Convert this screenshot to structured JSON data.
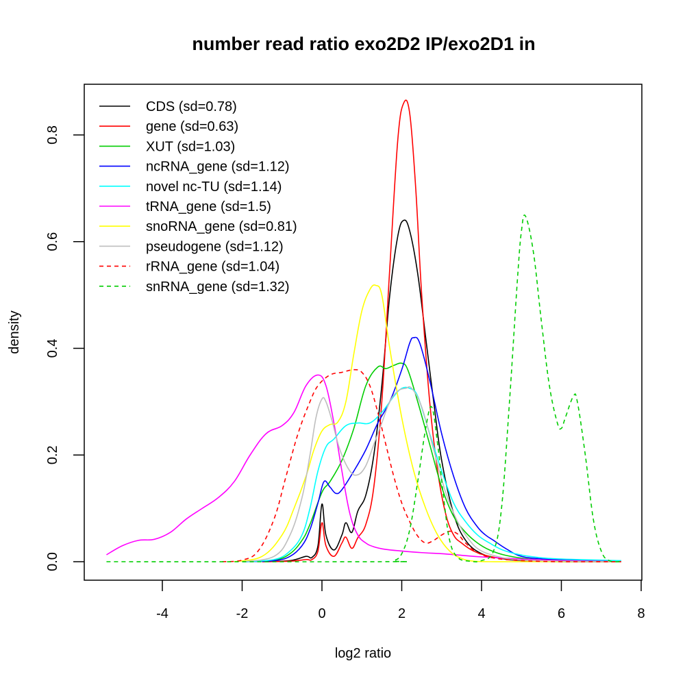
{
  "chart_data": {
    "type": "line",
    "title": "number read ratio exo2D2 IP/exo2D1 in",
    "xlabel": "log2 ratio",
    "ylabel": "density",
    "xlim": [
      -5.5,
      8.0
    ],
    "ylim": [
      -0.035,
      0.893
    ],
    "x_ticks": [
      -4,
      -2,
      0,
      2,
      4,
      6,
      8
    ],
    "x_tick_labels": [
      "-4",
      "-2",
      "0",
      "2",
      "4",
      "6",
      "8"
    ],
    "y_ticks": [
      0.0,
      0.2,
      0.4,
      0.6,
      0.8
    ],
    "y_tick_labels": [
      "0.0",
      "0.2",
      "0.4",
      "0.6",
      "0.8"
    ],
    "grid": false,
    "legend_position": "top-left",
    "series": [
      {
        "name": "CDS (sd=0.78)",
        "color": "#000000",
        "dash": "solid",
        "x": [
          -1.5,
          -0.8,
          -0.4,
          -0.25,
          -0.1,
          0.0,
          0.1,
          0.3,
          0.5,
          0.6,
          0.75,
          0.9,
          1.1,
          1.3,
          1.5,
          1.7,
          1.9,
          2.05,
          2.2,
          2.4,
          2.6,
          2.8,
          3.0,
          3.3,
          3.6,
          4.0,
          4.5,
          5.0,
          6.0,
          7.5
        ],
        "y": [
          0.0,
          0.002,
          0.01,
          0.008,
          0.03,
          0.108,
          0.05,
          0.022,
          0.05,
          0.073,
          0.055,
          0.095,
          0.125,
          0.2,
          0.33,
          0.5,
          0.61,
          0.64,
          0.62,
          0.54,
          0.42,
          0.3,
          0.19,
          0.09,
          0.04,
          0.015,
          0.006,
          0.002,
          0.0,
          0.0
        ]
      },
      {
        "name": "gene (sd=0.63)",
        "color": "#ff0000",
        "dash": "solid",
        "x": [
          -1.5,
          -0.8,
          -0.4,
          -0.25,
          -0.1,
          0.0,
          0.1,
          0.3,
          0.5,
          0.6,
          0.75,
          0.9,
          1.1,
          1.3,
          1.5,
          1.7,
          1.9,
          2.05,
          2.2,
          2.35,
          2.5,
          2.7,
          2.9,
          3.1,
          3.3,
          3.5,
          3.8,
          4.2,
          4.8,
          5.5,
          7.5
        ],
        "y": [
          0.0,
          0.001,
          0.004,
          0.004,
          0.02,
          0.073,
          0.03,
          0.01,
          0.035,
          0.046,
          0.025,
          0.045,
          0.07,
          0.14,
          0.3,
          0.55,
          0.79,
          0.86,
          0.84,
          0.7,
          0.5,
          0.3,
          0.17,
          0.09,
          0.05,
          0.035,
          0.02,
          0.01,
          0.004,
          0.001,
          0.0
        ]
      },
      {
        "name": "XUT (sd=1.03)",
        "color": "#00cd00",
        "dash": "solid",
        "x": [
          -2.0,
          -1.2,
          -0.8,
          -0.5,
          -0.3,
          0.0,
          0.2,
          0.5,
          0.8,
          1.1,
          1.4,
          1.6,
          1.8,
          2.0,
          2.15,
          2.4,
          2.7,
          3.0,
          3.3,
          3.6,
          3.9,
          4.2,
          4.6,
          5.2,
          6.0,
          7.5
        ],
        "y": [
          0.0,
          0.003,
          0.015,
          0.04,
          0.07,
          0.13,
          0.15,
          0.19,
          0.25,
          0.33,
          0.365,
          0.362,
          0.368,
          0.372,
          0.36,
          0.3,
          0.22,
          0.14,
          0.085,
          0.055,
          0.035,
          0.022,
          0.012,
          0.005,
          0.002,
          0.0
        ]
      },
      {
        "name": "ncRNA_gene (sd=1.12)",
        "color": "#0000ff",
        "dash": "solid",
        "x": [
          -2.0,
          -1.2,
          -0.8,
          -0.5,
          -0.3,
          -0.1,
          0.05,
          0.2,
          0.35,
          0.5,
          0.8,
          1.1,
          1.4,
          1.7,
          2.0,
          2.2,
          2.3,
          2.45,
          2.7,
          3.0,
          3.3,
          3.6,
          3.9,
          4.1,
          4.3,
          4.6,
          5.0,
          5.6,
          6.5,
          7.5
        ],
        "y": [
          0.0,
          0.002,
          0.01,
          0.03,
          0.06,
          0.11,
          0.15,
          0.14,
          0.128,
          0.135,
          0.17,
          0.21,
          0.26,
          0.3,
          0.36,
          0.41,
          0.42,
          0.41,
          0.34,
          0.24,
          0.16,
          0.1,
          0.065,
          0.05,
          0.04,
          0.025,
          0.01,
          0.005,
          0.002,
          0.001
        ]
      },
      {
        "name": "novel nc-TU (sd=1.14)",
        "color": "#00ffff",
        "dash": "solid",
        "x": [
          -2.0,
          -1.2,
          -0.8,
          -0.5,
          -0.3,
          -0.1,
          0.1,
          0.3,
          0.6,
          0.9,
          1.2,
          1.5,
          1.8,
          2.0,
          2.2,
          2.4,
          2.7,
          3.0,
          3.3,
          3.6,
          3.9,
          4.2,
          4.6,
          5.2,
          6.0,
          7.5
        ],
        "y": [
          0.0,
          0.004,
          0.02,
          0.05,
          0.1,
          0.17,
          0.215,
          0.23,
          0.255,
          0.26,
          0.26,
          0.28,
          0.31,
          0.325,
          0.325,
          0.31,
          0.24,
          0.17,
          0.11,
          0.075,
          0.05,
          0.035,
          0.02,
          0.01,
          0.005,
          0.002
        ]
      },
      {
        "name": "tRNA_gene (sd=1.5)",
        "color": "#ff00ff",
        "dash": "solid",
        "x": [
          -5.4,
          -5.0,
          -4.6,
          -4.2,
          -3.8,
          -3.4,
          -3.0,
          -2.6,
          -2.2,
          -1.8,
          -1.4,
          -1.0,
          -0.7,
          -0.4,
          -0.1,
          0.1,
          0.3,
          0.5,
          0.7,
          0.9,
          1.1,
          1.3,
          1.6,
          2.0,
          2.5,
          3.0,
          3.5,
          4.0,
          5.0,
          6.0,
          7.5
        ],
        "y": [
          0.013,
          0.03,
          0.04,
          0.042,
          0.055,
          0.08,
          0.1,
          0.12,
          0.15,
          0.2,
          0.24,
          0.255,
          0.28,
          0.33,
          0.35,
          0.33,
          0.26,
          0.17,
          0.09,
          0.05,
          0.035,
          0.028,
          0.023,
          0.02,
          0.017,
          0.015,
          0.012,
          0.009,
          0.005,
          0.002,
          0.0
        ]
      },
      {
        "name": "snoRNA_gene (sd=0.81)",
        "color": "#ffff00",
        "dash": "solid",
        "x": [
          -2.2,
          -1.5,
          -1.0,
          -0.7,
          -0.4,
          -0.2,
          0.0,
          0.2,
          0.4,
          0.6,
          0.8,
          1.0,
          1.2,
          1.35,
          1.5,
          1.7,
          2.0,
          2.3,
          2.6,
          2.9,
          3.2,
          3.5,
          3.8,
          4.2,
          5.0,
          7.5
        ],
        "y": [
          0.0,
          0.01,
          0.05,
          0.1,
          0.16,
          0.21,
          0.245,
          0.257,
          0.262,
          0.3,
          0.39,
          0.47,
          0.51,
          0.518,
          0.5,
          0.4,
          0.27,
          0.17,
          0.1,
          0.05,
          0.02,
          0.006,
          0.001,
          0.0,
          0.0,
          0.0
        ]
      },
      {
        "name": "pseudogene (sd=1.12)",
        "color": "#bebebe",
        "dash": "solid",
        "x": [
          -2.0,
          -1.2,
          -0.8,
          -0.5,
          -0.3,
          -0.15,
          0.0,
          0.1,
          0.25,
          0.45,
          0.7,
          0.9,
          1.1,
          1.3,
          1.5,
          1.7,
          1.9,
          2.1,
          2.25,
          2.5,
          2.8,
          3.1,
          3.4,
          3.7,
          4.0,
          4.5,
          5.0,
          6.0,
          7.5
        ],
        "y": [
          0.0,
          0.01,
          0.05,
          0.12,
          0.2,
          0.27,
          0.305,
          0.3,
          0.265,
          0.21,
          0.17,
          0.163,
          0.18,
          0.22,
          0.26,
          0.3,
          0.32,
          0.325,
          0.325,
          0.29,
          0.21,
          0.13,
          0.075,
          0.04,
          0.02,
          0.008,
          0.003,
          0.001,
          0.0
        ]
      },
      {
        "name": "rRNA_gene (sd=1.04)",
        "color": "#ff0000",
        "dash": "dashed",
        "x": [
          -2.5,
          -2.0,
          -1.6,
          -1.2,
          -0.9,
          -0.6,
          -0.3,
          -0.1,
          0.2,
          0.5,
          0.8,
          1.0,
          1.2,
          1.4,
          1.6,
          1.8,
          2.0,
          2.2,
          2.4,
          2.6,
          2.8,
          3.0,
          3.2,
          3.4,
          3.6,
          3.9,
          4.3,
          5.0,
          6.0,
          7.5
        ],
        "y": [
          0.0,
          0.003,
          0.02,
          0.08,
          0.16,
          0.24,
          0.3,
          0.33,
          0.35,
          0.355,
          0.36,
          0.355,
          0.33,
          0.28,
          0.22,
          0.16,
          0.11,
          0.075,
          0.048,
          0.035,
          0.04,
          0.05,
          0.057,
          0.052,
          0.035,
          0.017,
          0.007,
          0.002,
          0.0,
          0.0
        ]
      },
      {
        "name": "snRNA_gene (sd=1.32)",
        "color": "#00cd00",
        "dash": "dashed",
        "x": [
          -5.4,
          1.5,
          1.8,
          2.0,
          2.2,
          2.4,
          2.6,
          2.75,
          2.9,
          3.05,
          3.2,
          3.4,
          3.7,
          4.0,
          4.3,
          4.5,
          4.7,
          4.9,
          5.0,
          5.1,
          5.3,
          5.5,
          5.7,
          5.9,
          6.0,
          6.1,
          6.3,
          6.4,
          6.6,
          6.8,
          7.0,
          7.2,
          7.5
        ],
        "y": [
          0.0,
          0.0,
          0.002,
          0.015,
          0.06,
          0.15,
          0.25,
          0.29,
          0.22,
          0.12,
          0.04,
          0.008,
          0.001,
          0.002,
          0.02,
          0.1,
          0.3,
          0.53,
          0.62,
          0.648,
          0.58,
          0.45,
          0.33,
          0.26,
          0.25,
          0.27,
          0.31,
          0.3,
          0.2,
          0.08,
          0.02,
          0.002,
          0.0
        ]
      }
    ]
  }
}
